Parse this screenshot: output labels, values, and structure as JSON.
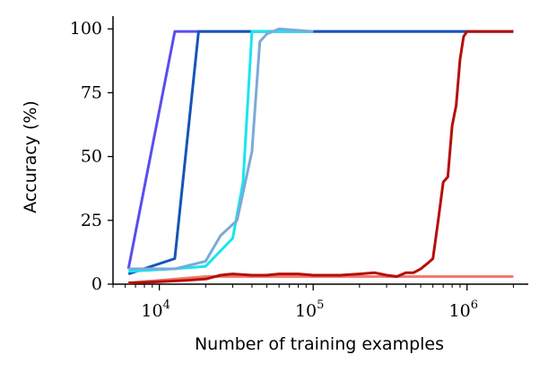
{
  "chart_data": {
    "type": "line",
    "title": "",
    "xlabel": "Number of training examples",
    "ylabel": "Accuracy (%)",
    "xscale": "log",
    "xlim": [
      5000,
      2500000
    ],
    "ylim": [
      0,
      105
    ],
    "grid": false,
    "legend": "none",
    "x_ticks": [
      {
        "value": 10000,
        "base": "10",
        "exp": "4"
      },
      {
        "value": 100000,
        "base": "10",
        "exp": "5"
      },
      {
        "value": 1000000,
        "base": "10",
        "exp": "6"
      }
    ],
    "y_ticks": [
      0,
      25,
      50,
      75,
      100
    ],
    "series": [
      {
        "color": "#5a4cf0",
        "x": [
          6300,
          12600,
          20000,
          50000,
          100000,
          200000,
          500000,
          1000000,
          2000000
        ],
        "y": [
          6,
          99,
          99,
          99,
          99,
          99,
          99,
          99,
          99
        ]
      },
      {
        "color": "#1555b5",
        "x": [
          6300,
          12600,
          18000,
          25000,
          50000,
          100000,
          200000,
          500000,
          1000000,
          2000000
        ],
        "y": [
          4,
          10,
          99,
          99,
          99,
          99,
          99,
          99,
          99,
          99
        ]
      },
      {
        "color": "#19e5ef",
        "x": [
          6300,
          12600,
          20000,
          30000,
          35000,
          40000,
          60000,
          100000
        ],
        "y": [
          5,
          6,
          7,
          18,
          40,
          99,
          99,
          99
        ]
      },
      {
        "color": "#7aaad8",
        "x": [
          6300,
          12600,
          20000,
          25000,
          32000,
          40000,
          45000,
          50000,
          60000,
          100000
        ],
        "y": [
          6,
          6,
          9,
          19,
          25,
          52,
          95,
          98,
          100,
          99
        ]
      },
      {
        "color": "#f07a70",
        "x": [
          6300,
          20000,
          100000,
          500000,
          1000000,
          2000000
        ],
        "y": [
          0.5,
          3,
          3,
          3,
          3,
          3
        ]
      },
      {
        "color": "#b50f0a",
        "x": [
          6300,
          10000,
          15000,
          20000,
          25000,
          30000,
          40000,
          50000,
          60000,
          80000,
          100000,
          150000,
          200000,
          250000,
          300000,
          350000,
          400000,
          450000,
          500000,
          550000,
          600000,
          650000,
          700000,
          750000,
          800000,
          850000,
          900000,
          950000,
          1000000,
          1100000,
          1200000,
          1500000,
          2000000
        ],
        "y": [
          0.5,
          1,
          1.5,
          2,
          3.5,
          4,
          3.5,
          3.5,
          4,
          4,
          3.5,
          3.5,
          4,
          4.5,
          3.5,
          3,
          4.5,
          4.5,
          6,
          8,
          10,
          25,
          40,
          42,
          62,
          70,
          88,
          97,
          99,
          99,
          99,
          99,
          99
        ]
      }
    ]
  }
}
